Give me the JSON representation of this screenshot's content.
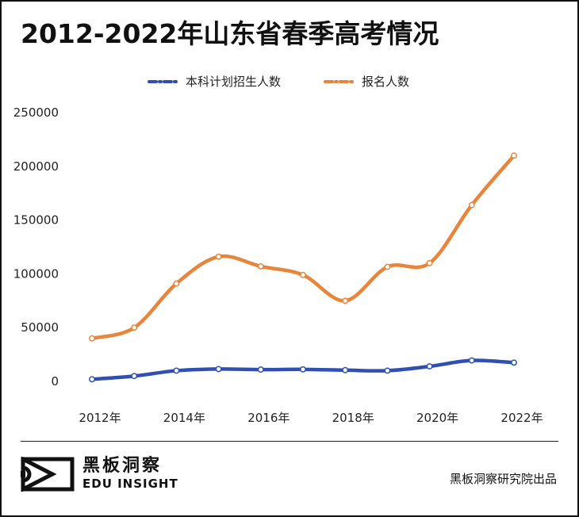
{
  "header": {
    "title": "2012-2022年山东省春季高考情况"
  },
  "legend": {
    "items": [
      {
        "label": "本科计划招生人数",
        "color": "#2f4fb3"
      },
      {
        "label": "报名人数",
        "color": "#e8853a"
      }
    ]
  },
  "chart_data": {
    "type": "line",
    "title": "2012-2022年山东省春季高考情况",
    "x": [
      2012,
      2013,
      2014,
      2015,
      2016,
      2017,
      2018,
      2019,
      2020,
      2021,
      2022
    ],
    "x_tick_labels": [
      "2012年",
      "2014年",
      "2016年",
      "2018年",
      "2020年",
      "2022年"
    ],
    "x_tick_values": [
      2012,
      2014,
      2016,
      2018,
      2020,
      2022
    ],
    "y_tick_labels": [
      "0",
      "50000",
      "100000",
      "150000",
      "200000",
      "250000"
    ],
    "y_tick_values": [
      0,
      50000,
      100000,
      150000,
      200000,
      250000
    ],
    "ylim": [
      0,
      250000
    ],
    "grid": false,
    "legend_position": "top",
    "smooth": true,
    "series": [
      {
        "name": "本科计划招生人数",
        "color": "#2f4fb3",
        "values": [
          2000,
          5000,
          10000,
          11500,
          11000,
          11200,
          10500,
          10000,
          14000,
          19500,
          17500
        ]
      },
      {
        "name": "报名人数",
        "color": "#e8853a",
        "values": [
          40000,
          50000,
          91000,
          116000,
          107000,
          99000,
          75000,
          106500,
          110000,
          164000,
          210000
        ]
      }
    ]
  },
  "footer": {
    "brand_cn": "黑板洞察",
    "brand_en": "EDU INSIGHT",
    "credit": "黑板洞察研究院出品",
    "logo_icon": "edu-insight-logo-icon"
  }
}
